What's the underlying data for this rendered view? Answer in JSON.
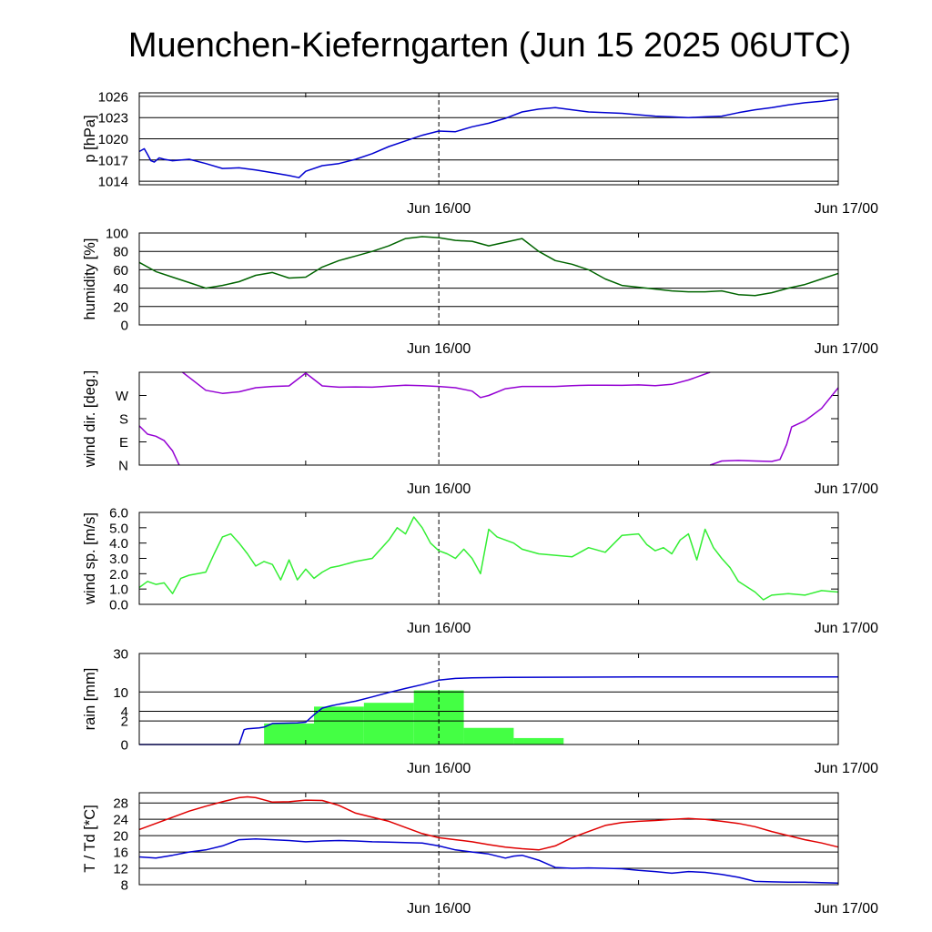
{
  "title": "Muenchen-Kieferngarten (Jun 15 2025 06UTC)",
  "colors": {
    "pressure": "#0000d0",
    "humidity": "#006400",
    "wind_direction": "#9400d3",
    "wind_speed": "#33ee33",
    "rain_bars": "#44ff44",
    "rain_cumulative": "#0000d0",
    "temperature": "#e00000",
    "dewpoint": "#0000d0"
  },
  "chart_data": [
    {
      "type": "line",
      "id": "pressure",
      "ylabel": "p [hPa]",
      "ylim": [
        1013.5,
        1026.5
      ],
      "yticks": [
        1014,
        1017,
        1020,
        1023,
        1026
      ],
      "grid": true,
      "x_unit": "hours since Jun 15 06UTC",
      "xlim": [
        0,
        42
      ],
      "xticks": [
        {
          "x": 18,
          "label": "Jun 16/00"
        },
        {
          "x": 42,
          "label": "Jun 17/00"
        }
      ],
      "series": [
        {
          "key": "pressure",
          "x": [
            0,
            0.3,
            0.5,
            0.7,
            0.9,
            1.2,
            1.5,
            2,
            3,
            4,
            5,
            6,
            7,
            8,
            9,
            9.6,
            10,
            11,
            12,
            13,
            14,
            15,
            16,
            17,
            18,
            19,
            20,
            21,
            22,
            23,
            24,
            25,
            26,
            27,
            28,
            29,
            30,
            31,
            32,
            33,
            34,
            35,
            36,
            37,
            38,
            39,
            40,
            41,
            42
          ],
          "y": [
            1018.2,
            1018.6,
            1017.8,
            1016.9,
            1016.7,
            1017.3,
            1017.1,
            1016.9,
            1017.1,
            1016.5,
            1015.8,
            1015.9,
            1015.6,
            1015.2,
            1014.8,
            1014.5,
            1015.4,
            1016.2,
            1016.5,
            1017.1,
            1017.9,
            1018.9,
            1019.7,
            1020.5,
            1021.1,
            1021.0,
            1021.7,
            1022.2,
            1022.9,
            1023.8,
            1024.2,
            1024.4,
            1024.1,
            1023.8,
            1023.7,
            1023.6,
            1023.4,
            1023.2,
            1023.1,
            1023.0,
            1023.1,
            1023.2,
            1023.7,
            1024.1,
            1024.4,
            1024.8,
            1025.1,
            1025.3,
            1025.6
          ]
        }
      ]
    },
    {
      "type": "line",
      "id": "humidity",
      "ylabel": "humidity [%]",
      "ylim": [
        0,
        100
      ],
      "yticks": [
        0,
        20,
        40,
        60,
        80,
        100
      ],
      "grid": true,
      "x_unit": "hours since Jun 15 06UTC",
      "xlim": [
        0,
        42
      ],
      "xticks": [
        {
          "x": 18,
          "label": "Jun 16/00"
        },
        {
          "x": 42,
          "label": "Jun 17/00"
        }
      ],
      "series": [
        {
          "key": "humidity",
          "x": [
            0,
            1,
            2,
            3,
            4,
            5,
            6,
            7,
            8,
            9,
            10,
            11,
            12,
            13,
            14,
            15,
            16,
            17,
            18,
            19,
            20,
            21,
            22,
            23,
            24,
            25,
            26,
            27,
            28,
            29,
            30,
            31,
            32,
            33,
            34,
            35,
            36,
            37,
            38,
            39,
            40,
            41,
            42
          ],
          "y": [
            68,
            58,
            52,
            46,
            40,
            43,
            47,
            54,
            57,
            51,
            52,
            63,
            70,
            75,
            80,
            86,
            94,
            96,
            95,
            92,
            91,
            86,
            90,
            94,
            80,
            70,
            66,
            60,
            50,
            43,
            41,
            39,
            37,
            36,
            36,
            37,
            33,
            32,
            35,
            40,
            44,
            50,
            56
          ]
        }
      ]
    },
    {
      "type": "line",
      "id": "wind_direction",
      "ylabel": "wind dir. [deg.]",
      "ylim": [
        0,
        360
      ],
      "yticks": [
        {
          "value": 0,
          "label": "N"
        },
        {
          "value": 90,
          "label": "E"
        },
        {
          "value": 180,
          "label": "S"
        },
        {
          "value": 270,
          "label": "W"
        }
      ],
      "grid": false,
      "x_unit": "hours since Jun 15 06UTC",
      "xlim": [
        0,
        42
      ],
      "xticks": [
        {
          "x": 18,
          "label": "Jun 16/00"
        },
        {
          "x": 42,
          "label": "Jun 17/00"
        }
      ],
      "series": [
        {
          "key": "wind_direction",
          "x": [
            0,
            0.5,
            1,
            1.5,
            2,
            2.4
          ],
          "y": [
            152,
            120,
            112,
            95,
            55,
            0
          ]
        },
        {
          "key": "wind_direction",
          "x": [
            2.6,
            3,
            4,
            5,
            6,
            7,
            8,
            9,
            10,
            11,
            12,
            13,
            14,
            15,
            16,
            17,
            18,
            19,
            20,
            20.5,
            21,
            22,
            23,
            24,
            25,
            26,
            27,
            28,
            29,
            30,
            31,
            32,
            33,
            34.3
          ],
          "y": [
            360,
            340,
            290,
            278,
            284,
            300,
            305,
            307,
            357,
            307,
            302,
            303,
            302,
            306,
            310,
            308,
            305,
            300,
            287,
            262,
            270,
            296,
            305,
            305,
            305,
            308,
            310,
            310,
            309,
            311,
            308,
            313,
            330,
            360
          ]
        },
        {
          "key": "wind_direction",
          "x": [
            34.3,
            35,
            36,
            37,
            38,
            38.5,
            38.9,
            39.2,
            40,
            41,
            42
          ],
          "y": [
            0,
            16,
            18,
            16,
            14,
            22,
            80,
            148,
            172,
            220,
            300
          ]
        }
      ]
    },
    {
      "type": "line",
      "id": "wind_speed",
      "ylabel": "wind sp. [m/s]",
      "ylim": [
        0,
        6.0
      ],
      "yticks": [
        0,
        1,
        2,
        3,
        4,
        5,
        6
      ],
      "ytick_labels": [
        "0.0",
        "1.0",
        "2.0",
        "3.0",
        "4.0",
        "5.0",
        "6.0"
      ],
      "grid": false,
      "x_unit": "hours since Jun 15 06UTC",
      "xlim": [
        0,
        42
      ],
      "xticks": [
        {
          "x": 18,
          "label": "Jun 16/00"
        },
        {
          "x": 42,
          "label": "Jun 17/00"
        }
      ],
      "series": [
        {
          "key": "wind_speed",
          "x": [
            0,
            0.5,
            1,
            1.5,
            2,
            2.5,
            3,
            4,
            4.5,
            5,
            5.5,
            6,
            6.5,
            7,
            7.5,
            8,
            8.5,
            9,
            9.5,
            10,
            10.5,
            11,
            11.5,
            12,
            13,
            14,
            15,
            15.5,
            16,
            16.5,
            17,
            17.5,
            18,
            18.5,
            19,
            19.5,
            20,
            20.5,
            21,
            21.5,
            22,
            22.5,
            23,
            24,
            25,
            26,
            27,
            28,
            29,
            30,
            30.5,
            31,
            31.5,
            32,
            32.5,
            33,
            33.5,
            34,
            34.5,
            35,
            35.5,
            36,
            37,
            37.5,
            38,
            39,
            40,
            41,
            42
          ],
          "y": [
            1.1,
            1.5,
            1.3,
            1.4,
            0.7,
            1.7,
            1.9,
            2.1,
            3.3,
            4.4,
            4.6,
            4.0,
            3.3,
            2.5,
            2.8,
            2.6,
            1.6,
            2.9,
            1.6,
            2.3,
            1.7,
            2.1,
            2.4,
            2.5,
            2.8,
            3.0,
            4.2,
            5.0,
            4.6,
            5.7,
            5.0,
            4.0,
            3.5,
            3.3,
            3.0,
            3.6,
            3.0,
            2.0,
            4.9,
            4.4,
            4.2,
            4.0,
            3.6,
            3.3,
            3.2,
            3.1,
            3.7,
            3.4,
            4.5,
            4.6,
            3.9,
            3.5,
            3.7,
            3.3,
            4.2,
            4.6,
            2.9,
            4.9,
            3.7,
            3.0,
            2.4,
            1.5,
            0.8,
            0.3,
            0.6,
            0.7,
            0.6,
            0.9,
            0.8
          ]
        }
      ]
    },
    {
      "type": "bar",
      "id": "rain",
      "ylabel": "rain [mm]",
      "scale": "sqrt",
      "ylim": [
        0,
        30
      ],
      "yticks": [
        0,
        2,
        4,
        10,
        30
      ],
      "grid": true,
      "x_unit": "hours since Jun 15 06UTC",
      "xlim": [
        0,
        42
      ],
      "xticks": [
        {
          "x": 18,
          "label": "Jun 16/00"
        },
        {
          "x": 42,
          "label": "Jun 17/00"
        }
      ],
      "bars": [
        {
          "x0": 7.5,
          "x1": 10.5,
          "value": 1.6
        },
        {
          "x0": 10.5,
          "x1": 13.5,
          "value": 5.2
        },
        {
          "x0": 13.5,
          "x1": 16.5,
          "value": 6.3
        },
        {
          "x0": 16.5,
          "x1": 19.5,
          "value": 10.6
        },
        {
          "x0": 19.5,
          "x1": 22.5,
          "value": 1.0
        },
        {
          "x0": 22.5,
          "x1": 25.5,
          "value": 0.15
        }
      ],
      "series": [
        {
          "key": "rain_cumulative",
          "x": [
            0,
            6.0,
            6.3,
            6.5,
            7.2,
            7.5,
            8,
            9.5,
            10,
            10.5,
            11,
            11.5,
            12,
            13,
            14,
            15,
            16,
            17,
            18,
            19,
            20,
            22,
            24,
            30,
            42
          ],
          "y": [
            0,
            0,
            0.8,
            0.9,
            1.0,
            1.1,
            1.6,
            1.7,
            1.8,
            3.2,
            4.8,
            5.4,
            5.9,
            6.8,
            8.2,
            9.8,
            11.4,
            13.0,
            15.0,
            15.8,
            16.1,
            16.3,
            16.4,
            16.5,
            16.5
          ]
        }
      ]
    },
    {
      "type": "line",
      "id": "temperature",
      "ylabel": "T / Td [*C]",
      "ylim": [
        8,
        30.5
      ],
      "yticks": [
        8,
        12,
        16,
        20,
        24,
        28
      ],
      "grid": true,
      "x_unit": "hours since Jun 15 06UTC",
      "xlim": [
        0,
        42
      ],
      "xticks": [
        {
          "x": 18,
          "label": "Jun 16/00"
        },
        {
          "x": 42,
          "label": "Jun 17/00"
        }
      ],
      "series": [
        {
          "key": "temperature",
          "x": [
            0,
            1,
            2,
            3,
            4,
            5,
            6,
            6.5,
            7,
            8,
            9,
            10,
            11,
            12,
            13,
            14,
            15,
            16,
            17,
            18,
            19,
            20,
            21,
            22,
            23,
            24,
            25,
            26,
            27,
            28,
            29,
            30,
            31,
            32,
            33,
            34,
            35,
            36,
            37,
            38,
            39,
            40,
            41,
            42
          ],
          "y": [
            21.5,
            23,
            24.5,
            26,
            27.2,
            28.3,
            29.3,
            29.5,
            29.3,
            28.2,
            28.3,
            28.7,
            28.6,
            27.4,
            25.5,
            24.5,
            23.5,
            22.0,
            20.5,
            19.5,
            19.0,
            18.5,
            17.8,
            17.2,
            16.8,
            16.5,
            17.5,
            19.5,
            21.0,
            22.5,
            23.2,
            23.5,
            23.7,
            24.0,
            24.2,
            24.0,
            23.5,
            23.0,
            22.2,
            21.0,
            20.0,
            19.0,
            18.2,
            17.2
          ]
        },
        {
          "key": "dewpoint",
          "x": [
            0,
            1,
            2,
            3,
            4,
            5,
            6,
            7,
            8,
            9,
            10,
            11,
            12,
            13,
            14,
            15,
            16,
            17,
            18,
            19,
            20,
            21,
            22,
            22.5,
            23,
            24,
            25,
            26,
            27,
            28,
            29,
            30,
            31,
            32,
            33,
            34,
            35,
            36,
            37,
            38,
            39,
            40,
            41,
            42
          ],
          "y": [
            14.8,
            14.5,
            15.2,
            16.0,
            16.5,
            17.5,
            19.0,
            19.2,
            19.0,
            18.8,
            18.5,
            18.7,
            18.8,
            18.7,
            18.5,
            18.4,
            18.3,
            18.2,
            17.5,
            16.5,
            16.0,
            15.5,
            14.5,
            15.0,
            15.2,
            14.0,
            12.2,
            12.0,
            12.1,
            12.0,
            11.9,
            11.5,
            11.2,
            10.8,
            11.2,
            11.0,
            10.5,
            9.8,
            8.8,
            8.7,
            8.6,
            8.6,
            8.5,
            8.4
          ]
        }
      ]
    }
  ]
}
